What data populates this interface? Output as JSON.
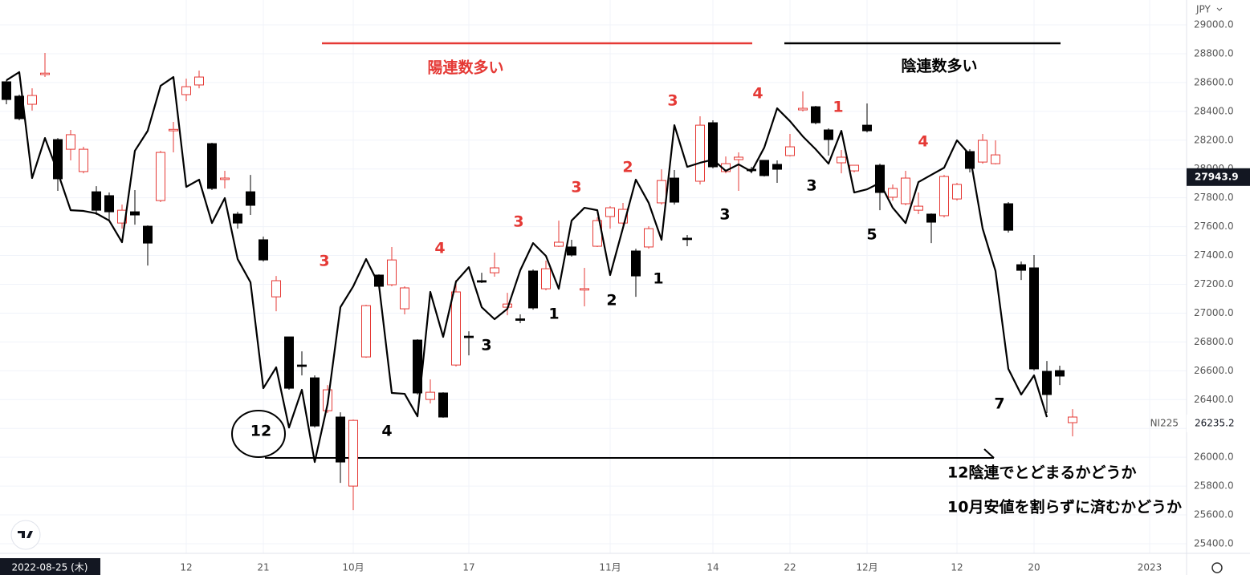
{
  "chart_data": {
    "type": "candlestick",
    "currency": "JPY",
    "crosshair_label": "2022-08-25 (木)",
    "candles": [
      {
        "o": 28605,
        "h": 28616,
        "l": 28449,
        "c": 28482
      },
      {
        "o": 28505,
        "h": 28516,
        "l": 28338,
        "c": 28349
      },
      {
        "o": 28449,
        "h": 28560,
        "l": 28405,
        "c": 28510
      },
      {
        "o": 28655,
        "h": 28805,
        "l": 28638,
        "c": 28665
      },
      {
        "o": 28204,
        "h": 28215,
        "l": 27848,
        "c": 27932
      },
      {
        "o": 28137,
        "h": 28271,
        "l": 28060,
        "c": 28238
      },
      {
        "o": 27982,
        "h": 28154,
        "l": 27970,
        "c": 28137
      },
      {
        "o": 27842,
        "h": 27881,
        "l": 27681,
        "c": 27714
      },
      {
        "o": 27815,
        "h": 27837,
        "l": 27648,
        "c": 27703
      },
      {
        "o": 27625,
        "h": 27753,
        "l": 27586,
        "c": 27714
      },
      {
        "o": 27703,
        "h": 27854,
        "l": 27614,
        "c": 27681
      },
      {
        "o": 27603,
        "h": 27609,
        "l": 27330,
        "c": 27486
      },
      {
        "o": 27781,
        "h": 28126,
        "l": 27770,
        "c": 28115
      },
      {
        "o": 28265,
        "h": 28327,
        "l": 28115,
        "c": 28275
      },
      {
        "o": 28516,
        "h": 28627,
        "l": 28471,
        "c": 28571
      },
      {
        "o": 28583,
        "h": 28683,
        "l": 28560,
        "c": 28638
      },
      {
        "o": 28176,
        "h": 28182,
        "l": 27854,
        "c": 27865
      },
      {
        "o": 27927,
        "h": 27987,
        "l": 27865,
        "c": 27937
      },
      {
        "o": 27687,
        "h": 27703,
        "l": 27586,
        "c": 27625
      },
      {
        "o": 27842,
        "h": 27959,
        "l": 27681,
        "c": 27748
      },
      {
        "o": 27509,
        "h": 27531,
        "l": 27358,
        "c": 27369
      },
      {
        "o": 27113,
        "h": 27258,
        "l": 27013,
        "c": 27225
      },
      {
        "o": 26835,
        "h": 26835,
        "l": 26468,
        "c": 26479
      },
      {
        "o": 26640,
        "h": 26735,
        "l": 26568,
        "c": 26630
      },
      {
        "o": 26551,
        "h": 26568,
        "l": 26206,
        "c": 26217
      },
      {
        "o": 26323,
        "h": 26501,
        "l": 26307,
        "c": 26468
      },
      {
        "o": 26279,
        "h": 26312,
        "l": 25822,
        "c": 25967
      },
      {
        "o": 25800,
        "h": 26262,
        "l": 25633,
        "c": 26256
      },
      {
        "o": 26696,
        "h": 27058,
        "l": 26690,
        "c": 27052
      },
      {
        "o": 27264,
        "h": 27269,
        "l": 27175,
        "c": 27186
      },
      {
        "o": 27197,
        "h": 27459,
        "l": 27186,
        "c": 27369
      },
      {
        "o": 27030,
        "h": 27186,
        "l": 26991,
        "c": 27175
      },
      {
        "o": 26813,
        "h": 26819,
        "l": 26435,
        "c": 26446
      },
      {
        "o": 26401,
        "h": 26540,
        "l": 26373,
        "c": 26451
      },
      {
        "o": 26446,
        "h": 26451,
        "l": 26274,
        "c": 26279
      },
      {
        "o": 26640,
        "h": 27230,
        "l": 26630,
        "c": 27147
      },
      {
        "o": 26840,
        "h": 26874,
        "l": 26707,
        "c": 26830
      },
      {
        "o": 27225,
        "h": 27280,
        "l": 27208,
        "c": 27215
      },
      {
        "o": 27280,
        "h": 27420,
        "l": 27253,
        "c": 27314
      },
      {
        "o": 27041,
        "h": 27141,
        "l": 26985,
        "c": 27063
      },
      {
        "o": 26960,
        "h": 26991,
        "l": 26930,
        "c": 26950
      },
      {
        "o": 27292,
        "h": 27303,
        "l": 27024,
        "c": 27036
      },
      {
        "o": 27169,
        "h": 27364,
        "l": 27158,
        "c": 27308
      },
      {
        "o": 27464,
        "h": 27642,
        "l": 27459,
        "c": 27492
      },
      {
        "o": 27459,
        "h": 27509,
        "l": 27392,
        "c": 27403
      },
      {
        "o": 27160,
        "h": 27314,
        "l": 27047,
        "c": 27170
      },
      {
        "o": 27464,
        "h": 27664,
        "l": 27459,
        "c": 27642
      },
      {
        "o": 27670,
        "h": 27742,
        "l": 27586,
        "c": 27731
      },
      {
        "o": 27625,
        "h": 27765,
        "l": 27614,
        "c": 27720
      },
      {
        "o": 27431,
        "h": 27447,
        "l": 27113,
        "c": 27258
      },
      {
        "o": 27459,
        "h": 27603,
        "l": 27447,
        "c": 27586
      },
      {
        "o": 27765,
        "h": 27998,
        "l": 27753,
        "c": 27920
      },
      {
        "o": 27937,
        "h": 27993,
        "l": 27753,
        "c": 27770
      },
      {
        "o": 27520,
        "h": 27542,
        "l": 27464,
        "c": 27510
      },
      {
        "o": 27915,
        "h": 28366,
        "l": 27893,
        "c": 28304
      },
      {
        "o": 28321,
        "h": 28338,
        "l": 28004,
        "c": 28015
      },
      {
        "o": 27982,
        "h": 28087,
        "l": 27970,
        "c": 28037
      },
      {
        "o": 28065,
        "h": 28115,
        "l": 27848,
        "c": 28082
      },
      {
        "o": 27998,
        "h": 28015,
        "l": 27970,
        "c": 27988
      },
      {
        "o": 28060,
        "h": 28060,
        "l": 27948,
        "c": 27954
      },
      {
        "o": 28032,
        "h": 28060,
        "l": 27904,
        "c": 27998
      },
      {
        "o": 28093,
        "h": 28243,
        "l": 28087,
        "c": 28154
      },
      {
        "o": 28410,
        "h": 28538,
        "l": 28399,
        "c": 28421
      },
      {
        "o": 28432,
        "h": 28438,
        "l": 28310,
        "c": 28321
      },
      {
        "o": 28271,
        "h": 28282,
        "l": 28093,
        "c": 28204
      },
      {
        "o": 28043,
        "h": 28132,
        "l": 27970,
        "c": 28082
      },
      {
        "o": 27987,
        "h": 28026,
        "l": 27976,
        "c": 28026
      },
      {
        "o": 28304,
        "h": 28455,
        "l": 28254,
        "c": 28265
      },
      {
        "o": 28026,
        "h": 28037,
        "l": 27714,
        "c": 27837
      },
      {
        "o": 27804,
        "h": 27893,
        "l": 27781,
        "c": 27865
      },
      {
        "o": 27759,
        "h": 27987,
        "l": 27748,
        "c": 27937
      },
      {
        "o": 27714,
        "h": 27837,
        "l": 27687,
        "c": 27742
      },
      {
        "o": 27687,
        "h": 27692,
        "l": 27486,
        "c": 27631
      },
      {
        "o": 27676,
        "h": 27959,
        "l": 27664,
        "c": 27948
      },
      {
        "o": 27792,
        "h": 27904,
        "l": 27781,
        "c": 27893
      },
      {
        "o": 28121,
        "h": 28137,
        "l": 27976,
        "c": 28004
      },
      {
        "o": 28048,
        "h": 28243,
        "l": 28037,
        "c": 28199
      },
      {
        "o": 28037,
        "h": 28199,
        "l": 28032,
        "c": 28098
      },
      {
        "o": 27759,
        "h": 27770,
        "l": 27559,
        "c": 27575
      },
      {
        "o": 27336,
        "h": 27358,
        "l": 27230,
        "c": 27297
      },
      {
        "o": 27314,
        "h": 27403,
        "l": 26601,
        "c": 26613
      },
      {
        "o": 26596,
        "h": 26668,
        "l": 26307,
        "c": 26435
      },
      {
        "o": 26601,
        "h": 26635,
        "l": 26501,
        "c": 26563
      },
      {
        "o": 26240,
        "h": 26334,
        "l": 26145,
        "c": 26279
      }
    ],
    "up_color": "#e53935",
    "down_color": "#000000",
    "line": {
      "color": "#000000",
      "values": [
        28616,
        28672,
        27937,
        28215,
        27976,
        27714,
        27709,
        27692,
        27642,
        27492,
        28126,
        28265,
        28577,
        28638,
        27876,
        27926,
        27625,
        27798,
        27375,
        27214,
        26479,
        26624,
        26206,
        26468,
        25967,
        26368,
        27041,
        27186,
        27375,
        27197,
        26446,
        26440,
        26284,
        27147,
        26835,
        27219,
        27319,
        27041,
        26958,
        27030,
        27297,
        27486,
        27397,
        27169,
        27642,
        27731,
        27714,
        27264,
        27592,
        27926,
        27765,
        27509,
        28304,
        28015,
        28043,
        28065,
        27987,
        28032,
        27982,
        28149,
        28421,
        28332,
        28226,
        28137,
        28037,
        28265,
        27837,
        27859,
        27904,
        27731,
        27625,
        27909,
        27959,
        28009,
        28199,
        28098,
        27586,
        27292,
        26613,
        26435,
        26568,
        26279,
        null,
        null
      ]
    },
    "ylim": [
      25400,
      29000
    ],
    "yticks": [
      {
        "value": 25400,
        "label": "25400.0"
      },
      {
        "value": 25600,
        "label": "25600.0"
      },
      {
        "value": 25800,
        "label": "25800.0"
      },
      {
        "value": 26000,
        "label": "26000.0"
      },
      {
        "value": 26200,
        "label": "26200.0"
      },
      {
        "value": 26400,
        "label": "26400.0"
      },
      {
        "value": 26600,
        "label": "26600.0"
      },
      {
        "value": 26800,
        "label": "26800.0"
      },
      {
        "value": 27000,
        "label": "27000.0"
      },
      {
        "value": 27200,
        "label": "27200.0"
      },
      {
        "value": 27400,
        "label": "27400.0"
      },
      {
        "value": 27600,
        "label": "27600.0"
      },
      {
        "value": 27800,
        "label": "27800.0"
      },
      {
        "value": 28000,
        "label": "28000.0"
      },
      {
        "value": 28200,
        "label": "28200.0"
      },
      {
        "value": 28400,
        "label": "28400.0"
      },
      {
        "value": 28600,
        "label": "28600.0"
      },
      {
        "value": 28800,
        "label": "28800.0"
      },
      {
        "value": 29000,
        "label": "29000.0"
      }
    ],
    "xticks": [
      {
        "value": 14,
        "label": "12"
      },
      {
        "value": 20,
        "label": "21"
      },
      {
        "value": 27,
        "label": "10月"
      },
      {
        "value": 36,
        "label": "17"
      },
      {
        "value": 47,
        "label": "11月"
      },
      {
        "value": 55,
        "label": "14"
      },
      {
        "value": 61,
        "label": "22"
      },
      {
        "value": 67,
        "label": "12月"
      },
      {
        "value": 74,
        "label": "12"
      },
      {
        "value": 80,
        "label": "20"
      },
      {
        "value": 89,
        "label": "2023"
      }
    ],
    "grid": true,
    "price_label": {
      "value": 27943.9,
      "label": "27943.9"
    },
    "compare_label": {
      "name": "NI225",
      "value": 26235.2,
      "label": "26235.2"
    },
    "annotations": [
      {
        "text": "陽連数多い",
        "color": "#e53935"
      },
      {
        "text": "陰連数多い",
        "color": "#000000"
      },
      {
        "text": "3",
        "color": "#e53935"
      },
      {
        "text": "4",
        "color": "#e53935"
      },
      {
        "text": "3",
        "color": "#e53935"
      },
      {
        "text": "3",
        "color": "#e53935"
      },
      {
        "text": "2",
        "color": "#e53935"
      },
      {
        "text": "3",
        "color": "#e53935"
      },
      {
        "text": "4",
        "color": "#e53935"
      },
      {
        "text": "1",
        "color": "#e53935"
      },
      {
        "text": "4",
        "color": "#e53935"
      },
      {
        "text": "12",
        "color": "#000000"
      },
      {
        "text": "4",
        "color": "#000000"
      },
      {
        "text": "3",
        "color": "#000000"
      },
      {
        "text": "1",
        "color": "#000000"
      },
      {
        "text": "2",
        "color": "#000000"
      },
      {
        "text": "1",
        "color": "#000000"
      },
      {
        "text": "3",
        "color": "#000000"
      },
      {
        "text": "3",
        "color": "#000000"
      },
      {
        "text": "5",
        "color": "#000000"
      },
      {
        "text": "7",
        "color": "#000000"
      },
      {
        "text": "12陰連でとどまるかどうか",
        "color": "#000000"
      },
      {
        "text": "10月安値を割らずに済むかどうか",
        "color": "#000000"
      }
    ]
  }
}
